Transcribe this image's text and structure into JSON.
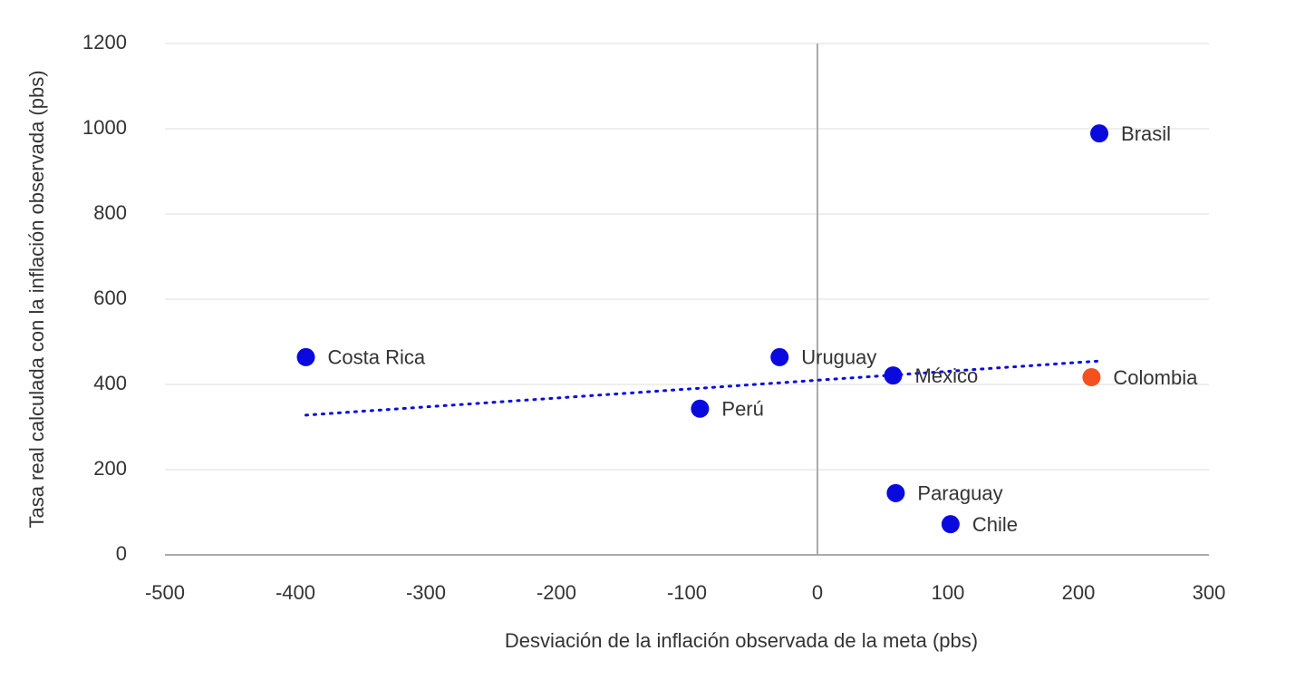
{
  "chart_data": {
    "type": "scatter",
    "x_label": "Desviación de la inflación observada de la meta (pbs)",
    "y_label": "Tasa real calculada con la inflación observada (pbs)",
    "labels": [
      "Costa Rica",
      "Perú",
      "Uruguay",
      "México",
      "Colombia",
      "Brasil",
      "Paraguay",
      "Chile"
    ],
    "x": [
      -392,
      -90,
      -29,
      58,
      210,
      216,
      60,
      102
    ],
    "values": [
      464,
      343,
      464,
      421,
      417,
      989,
      145,
      72
    ],
    "colors": [
      "#0a0adf",
      "#0a0adf",
      "#0a0adf",
      "#0a0adf",
      "#f4511e",
      "#0a0adf",
      "#0a0adf",
      "#0a0adf"
    ],
    "trendline": {
      "color": "#0a0adf",
      "x": [
        -392,
        216
      ],
      "values": [
        328,
        455
      ]
    },
    "xlim": [
      -500,
      300
    ],
    "ylim": [
      0,
      1200
    ],
    "xticks": [
      -500,
      -400,
      -300,
      -200,
      -100,
      0,
      100,
      200,
      300
    ],
    "yticks": [
      0,
      200,
      400,
      600,
      800,
      1000,
      1200
    ],
    "grid": true
  }
}
